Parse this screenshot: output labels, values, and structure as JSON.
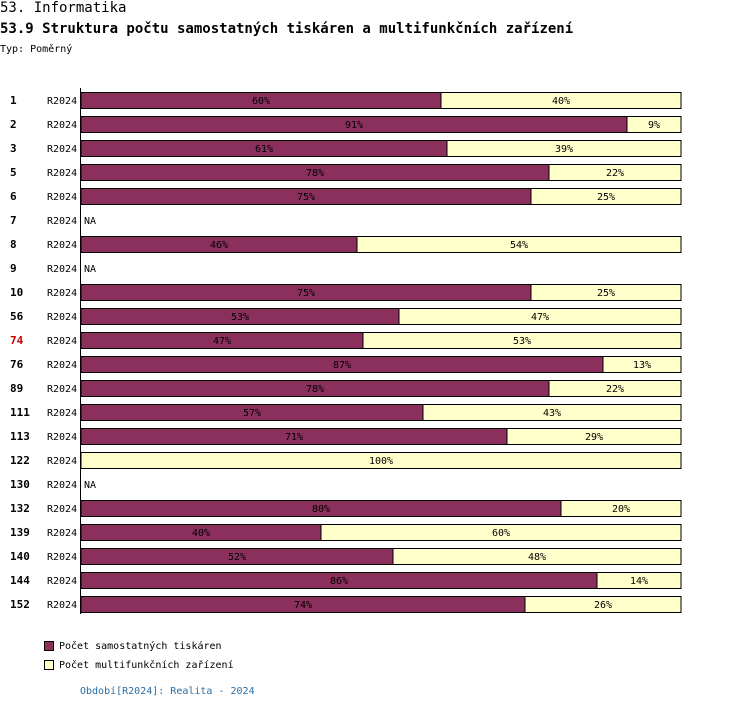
{
  "header": {
    "section": "53. Informatika",
    "title": "53.9 Struktura počtu samostatných tiskáren a multifunkčních zařízení",
    "type_label": "Typ: Poměrný"
  },
  "chart_data": {
    "type": "bar",
    "stacked": true,
    "orientation": "horizontal",
    "unit": "%",
    "colors": {
      "printers": "#8b2f5c",
      "multifunction": "#ffffcc",
      "highlight": "#cc0000"
    },
    "highlight_category": "74",
    "series_names": [
      "Počet samostatných tiskáren",
      "Počet multifunkčních zařízení"
    ],
    "rows": [
      {
        "id": "1",
        "period": "R2024",
        "values": [
          60,
          40
        ]
      },
      {
        "id": "2",
        "period": "R2024",
        "values": [
          91,
          9
        ]
      },
      {
        "id": "3",
        "period": "R2024",
        "values": [
          61,
          39
        ]
      },
      {
        "id": "5",
        "period": "R2024",
        "values": [
          78,
          22
        ]
      },
      {
        "id": "6",
        "period": "R2024",
        "values": [
          75,
          25
        ]
      },
      {
        "id": "7",
        "period": "R2024",
        "values": null,
        "na": "NA"
      },
      {
        "id": "8",
        "period": "R2024",
        "values": [
          46,
          54
        ]
      },
      {
        "id": "9",
        "period": "R2024",
        "values": null,
        "na": "NA"
      },
      {
        "id": "10",
        "period": "R2024",
        "values": [
          75,
          25
        ]
      },
      {
        "id": "56",
        "period": "R2024",
        "values": [
          53,
          47
        ]
      },
      {
        "id": "74",
        "period": "R2024",
        "values": [
          47,
          53
        ]
      },
      {
        "id": "76",
        "period": "R2024",
        "values": [
          87,
          13
        ]
      },
      {
        "id": "89",
        "period": "R2024",
        "values": [
          78,
          22
        ]
      },
      {
        "id": "111",
        "period": "R2024",
        "values": [
          57,
          43
        ]
      },
      {
        "id": "113",
        "period": "R2024",
        "values": [
          71,
          29
        ]
      },
      {
        "id": "122",
        "period": "R2024",
        "values": [
          0,
          100
        ]
      },
      {
        "id": "130",
        "period": "R2024",
        "values": null,
        "na": "NA"
      },
      {
        "id": "132",
        "period": "R2024",
        "values": [
          80,
          20
        ]
      },
      {
        "id": "139",
        "period": "R2024",
        "values": [
          40,
          60
        ]
      },
      {
        "id": "140",
        "period": "R2024",
        "values": [
          52,
          48
        ]
      },
      {
        "id": "144",
        "period": "R2024",
        "values": [
          86,
          14
        ]
      },
      {
        "id": "152",
        "period": "R2024",
        "values": [
          74,
          26
        ]
      }
    ]
  },
  "legend": [
    {
      "label": "Počet samostatných tiskáren"
    },
    {
      "label": "Počet multifunkčních zařízení"
    }
  ],
  "footer": {
    "period_text": "Období[R2024]: Realita - 2024"
  }
}
